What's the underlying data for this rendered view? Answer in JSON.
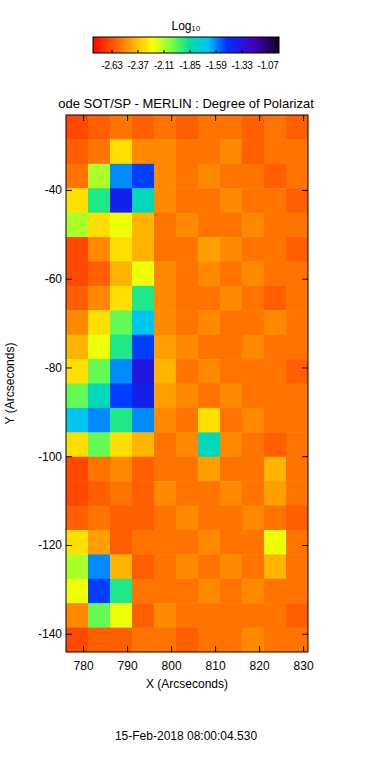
{
  "chart_data": {
    "type": "heatmap",
    "title": "ode SOT/SP - MERLIN : Degree of Polarizat",
    "x_label": "X (Arcseconds)",
    "y_label": "Y (Arcseconds)",
    "date": "15-Feb-2018 08:00:04.530",
    "xlim": [
      776,
      831
    ],
    "ylim": [
      -144,
      -23
    ],
    "xticks": [
      780,
      790,
      800,
      810,
      820,
      830
    ],
    "yticks": [
      -140,
      -120,
      -100,
      -80,
      -60,
      -40
    ],
    "x_edges": [
      776,
      781,
      786,
      791,
      796,
      801,
      806,
      811,
      816,
      821,
      826,
      831
    ],
    "y_edges": [
      -23,
      -28.5,
      -34,
      -39.5,
      -45,
      -50.5,
      -56,
      -61.5,
      -67,
      -72.5,
      -78,
      -83.5,
      -89,
      -94.5,
      -100,
      -105.5,
      -111,
      -116.5,
      -122,
      -127.5,
      -133,
      -138.5,
      -144
    ],
    "values": [
      [
        -2.65,
        -2.6,
        -2.55,
        -2.6,
        -2.55,
        -2.6,
        -2.55,
        -2.55,
        -2.6,
        -2.55,
        -2.6
      ],
      [
        -2.6,
        -2.55,
        -2.3,
        -2.5,
        -2.5,
        -2.55,
        -2.55,
        -2.5,
        -2.6,
        -2.55,
        -2.55
      ],
      [
        -2.55,
        -2.1,
        -1.6,
        -1.5,
        -2.5,
        -2.55,
        -2.5,
        -2.55,
        -2.55,
        -2.6,
        -2.55
      ],
      [
        -2.3,
        -1.9,
        -1.4,
        -1.8,
        -2.5,
        -2.55,
        -2.55,
        -2.5,
        -2.55,
        -2.55,
        -2.6
      ],
      [
        -2.1,
        -2.3,
        -2.2,
        -2.4,
        -2.55,
        -2.5,
        -2.55,
        -2.55,
        -2.5,
        -2.55,
        -2.55
      ],
      [
        -2.65,
        -2.5,
        -2.3,
        -2.4,
        -2.55,
        -2.55,
        -2.45,
        -2.5,
        -2.55,
        -2.55,
        -2.6
      ],
      [
        -2.65,
        -2.6,
        -2.4,
        -2.2,
        -2.5,
        -2.55,
        -2.5,
        -2.55,
        -2.5,
        -2.55,
        -2.55
      ],
      [
        -2.6,
        -2.5,
        -2.3,
        -1.9,
        -2.5,
        -2.55,
        -2.55,
        -2.5,
        -2.55,
        -2.6,
        -2.55
      ],
      [
        -2.5,
        -2.3,
        -2.0,
        -1.7,
        -2.5,
        -2.55,
        -2.5,
        -2.55,
        -2.55,
        -2.5,
        -2.55
      ],
      [
        -2.4,
        -2.2,
        -1.9,
        -1.5,
        -2.45,
        -2.5,
        -2.55,
        -2.55,
        -2.5,
        -2.55,
        -2.55
      ],
      [
        -2.3,
        -2.0,
        -1.6,
        -1.35,
        -2.4,
        -2.55,
        -2.5,
        -2.55,
        -2.55,
        -2.55,
        -2.6
      ],
      [
        -2.0,
        -1.8,
        -1.5,
        -1.4,
        -2.45,
        -2.5,
        -2.55,
        -2.5,
        -2.55,
        -2.55,
        -2.55
      ],
      [
        -1.7,
        -1.6,
        -1.9,
        -1.6,
        -2.5,
        -2.55,
        -2.3,
        -2.55,
        -2.5,
        -2.55,
        -2.55
      ],
      [
        -2.3,
        -2.0,
        -2.3,
        -2.4,
        -2.55,
        -2.5,
        -1.8,
        -2.5,
        -2.55,
        -2.6,
        -2.55
      ],
      [
        -2.65,
        -2.55,
        -2.5,
        -2.6,
        -2.55,
        -2.55,
        -2.45,
        -2.55,
        -2.55,
        -2.4,
        -2.55
      ],
      [
        -2.65,
        -2.6,
        -2.55,
        -2.6,
        -2.5,
        -2.55,
        -2.55,
        -2.5,
        -2.55,
        -2.45,
        -2.55
      ],
      [
        -2.6,
        -2.55,
        -2.6,
        -2.6,
        -2.55,
        -2.5,
        -2.55,
        -2.55,
        -2.5,
        -2.55,
        -2.6
      ],
      [
        -2.3,
        -2.45,
        -2.6,
        -2.55,
        -2.55,
        -2.55,
        -2.5,
        -2.55,
        -2.55,
        -2.2,
        -2.55
      ],
      [
        -2.1,
        -1.6,
        -2.4,
        -2.6,
        -2.55,
        -2.5,
        -2.55,
        -2.5,
        -2.55,
        -2.4,
        -2.55
      ],
      [
        -2.2,
        -1.5,
        -1.9,
        -2.55,
        -2.55,
        -2.55,
        -2.5,
        -2.55,
        -2.5,
        -2.55,
        -2.55
      ],
      [
        -2.5,
        -2.0,
        -2.2,
        -2.6,
        -2.5,
        -2.55,
        -2.55,
        -2.55,
        -2.55,
        -2.55,
        -2.6
      ],
      [
        -2.65,
        -2.6,
        -2.6,
        -2.55,
        -2.55,
        -2.6,
        -2.55,
        -2.55,
        -2.5,
        -2.55,
        -2.55
      ]
    ],
    "colorbar_title": "Log₁₀",
    "color_range": [
      -2.82,
      -0.96
    ],
    "color_ticks": [
      -2.63,
      -2.37,
      -2.11,
      -1.85,
      -1.59,
      -1.33,
      -1.07
    ]
  }
}
